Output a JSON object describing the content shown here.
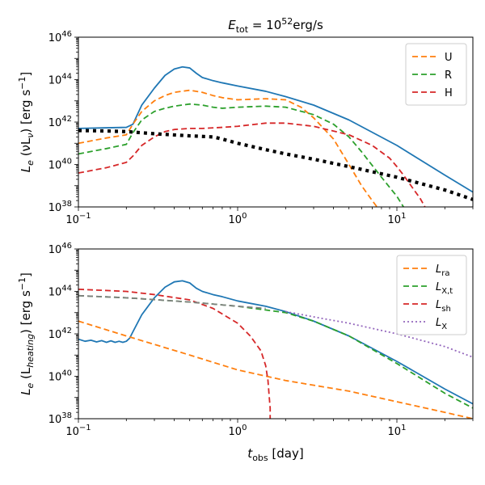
{
  "chart_data": [
    {
      "type": "line",
      "title": "E_tot = 10^52 erg/s",
      "title_parts": {
        "var": "E",
        "sub": "tot",
        "eq": " = 10",
        "exp": "52",
        "unit": "erg/s"
      },
      "xlabel": "",
      "ylabel": "L_e (νL_ν) [erg s^-1]",
      "ylabel_parts": {
        "a": "L",
        "a_sub": "e",
        "b": " (νL",
        "b_sub": "ν",
        "c": ") [erg s",
        "c_sup": "−1",
        "d": "]"
      },
      "xscale": "log",
      "yscale": "log",
      "xlim": [
        0.1,
        30
      ],
      "ylim": [
        1e+38,
        1e+46
      ],
      "xticks": [
        {
          "value": 0.1,
          "base": "10",
          "exp": "−1"
        },
        {
          "value": 1,
          "base": "10",
          "exp": "0"
        },
        {
          "value": 10,
          "base": "10",
          "exp": "1"
        }
      ],
      "yticks": [
        {
          "value": 1e+38,
          "base": "10",
          "exp": "38"
        },
        {
          "value": 1e+40,
          "base": "10",
          "exp": "40"
        },
        {
          "value": 1e+42,
          "base": "10",
          "exp": "42"
        },
        {
          "value": 1e+44,
          "base": "10",
          "exp": "44"
        },
        {
          "value": 1e+46,
          "base": "10",
          "exp": "46"
        }
      ],
      "legend": {
        "location": "upper-right",
        "entries": [
          {
            "label": "U",
            "sub": ""
          },
          {
            "label": "R",
            "sub": ""
          },
          {
            "label": "H",
            "sub": ""
          }
        ]
      },
      "series": [
        {
          "name": "total",
          "color": "#1f77b4",
          "style": "solid",
          "in_legend": false,
          "x": [
            0.1,
            0.2,
            0.22,
            0.25,
            0.3,
            0.35,
            0.4,
            0.45,
            0.5,
            0.55,
            0.6,
            0.7,
            0.8,
            1,
            1.5,
            2,
            3,
            5,
            10,
            20,
            30
          ],
          "logy": [
            41.7,
            41.75,
            41.9,
            42.8,
            43.6,
            44.2,
            44.5,
            44.6,
            44.55,
            44.3,
            44.1,
            43.95,
            43.85,
            43.7,
            43.45,
            43.2,
            42.8,
            42.1,
            40.9,
            39.5,
            38.7
          ]
        },
        {
          "name": "U",
          "color": "#ff7f0e",
          "style": "dashed",
          "in_legend": true,
          "x": [
            0.1,
            0.15,
            0.2,
            0.22,
            0.25,
            0.3,
            0.35,
            0.4,
            0.5,
            0.6,
            0.7,
            0.8,
            1,
            1.5,
            2,
            2.5,
            3,
            4,
            5,
            6,
            7,
            7.5
          ],
          "logy": [
            41.0,
            41.25,
            41.4,
            41.9,
            42.5,
            43.0,
            43.25,
            43.4,
            43.5,
            43.4,
            43.25,
            43.15,
            43.05,
            43.1,
            43.05,
            42.7,
            42.2,
            41.2,
            40.0,
            39.0,
            38.3,
            38.0
          ]
        },
        {
          "name": "R",
          "color": "#2ca02c",
          "style": "dashed",
          "in_legend": true,
          "x": [
            0.1,
            0.15,
            0.2,
            0.22,
            0.25,
            0.3,
            0.35,
            0.4,
            0.5,
            0.6,
            0.7,
            0.8,
            1,
            1.5,
            2,
            3,
            4,
            5,
            6,
            8,
            10,
            11
          ],
          "logy": [
            40.5,
            40.75,
            40.95,
            41.5,
            42.1,
            42.5,
            42.65,
            42.75,
            42.85,
            42.8,
            42.7,
            42.65,
            42.7,
            42.75,
            42.7,
            42.35,
            41.9,
            41.3,
            40.6,
            39.4,
            38.5,
            38.0
          ]
        },
        {
          "name": "H",
          "color": "#d62728",
          "style": "dashed",
          "in_legend": true,
          "x": [
            0.1,
            0.15,
            0.2,
            0.22,
            0.25,
            0.3,
            0.35,
            0.4,
            0.5,
            0.6,
            0.8,
            1,
            1.5,
            2,
            3,
            5,
            7,
            9,
            10,
            11,
            12,
            14,
            15
          ],
          "logy": [
            39.6,
            39.85,
            40.1,
            40.4,
            40.9,
            41.3,
            41.55,
            41.65,
            41.7,
            41.7,
            41.75,
            41.8,
            41.95,
            41.95,
            41.8,
            41.4,
            40.9,
            40.3,
            39.9,
            39.5,
            39.1,
            38.4,
            38.0
          ]
        },
        {
          "name": "black-dotted",
          "color": "#000000",
          "style": "bold-dotted",
          "in_legend": false,
          "x": [
            0.1,
            0.15,
            0.2,
            0.3,
            0.5,
            0.7,
            0.8,
            1,
            1.5,
            2,
            3,
            5,
            10,
            20,
            30
          ],
          "logy": [
            41.6,
            41.58,
            41.55,
            41.45,
            41.35,
            41.3,
            41.2,
            41.0,
            40.7,
            40.5,
            40.25,
            39.9,
            39.4,
            38.8,
            38.35
          ]
        }
      ]
    },
    {
      "type": "line",
      "title": "",
      "xlabel": "t_obs [day]",
      "xlabel_parts": {
        "var": "t",
        "sub": "obs",
        "rest": " [day]"
      },
      "ylabel": "L_e (L_heating) [erg s^-1]",
      "ylabel_parts": {
        "a": "L",
        "a_sub": "e",
        "b": " (L",
        "b_sub": "heating",
        "c": ") [erg s",
        "c_sup": "−1",
        "d": "]"
      },
      "xscale": "log",
      "yscale": "log",
      "xlim": [
        0.1,
        30
      ],
      "ylim": [
        1e+38,
        1e+46
      ],
      "xticks": [
        {
          "value": 0.1,
          "base": "10",
          "exp": "−1"
        },
        {
          "value": 1,
          "base": "10",
          "exp": "0"
        },
        {
          "value": 10,
          "base": "10",
          "exp": "1"
        }
      ],
      "yticks": [
        {
          "value": 1e+38,
          "base": "10",
          "exp": "38"
        },
        {
          "value": 1e+40,
          "base": "10",
          "exp": "40"
        },
        {
          "value": 1e+42,
          "base": "10",
          "exp": "42"
        },
        {
          "value": 1e+44,
          "base": "10",
          "exp": "44"
        },
        {
          "value": 1e+46,
          "base": "10",
          "exp": "46"
        }
      ],
      "legend": {
        "location": "upper-right",
        "entries": [
          {
            "label": "L",
            "sub": "ra"
          },
          {
            "label": "L",
            "sub": "X,t"
          },
          {
            "label": "L",
            "sub": "sh"
          },
          {
            "label": "L",
            "sub": "X"
          }
        ]
      },
      "series": [
        {
          "name": "total",
          "color": "#1f77b4",
          "style": "solid",
          "in_legend": false,
          "x": [
            0.1,
            0.11,
            0.12,
            0.13,
            0.14,
            0.15,
            0.16,
            0.17,
            0.18,
            0.19,
            0.2,
            0.21,
            0.22,
            0.25,
            0.3,
            0.35,
            0.4,
            0.45,
            0.5,
            0.55,
            0.6,
            0.7,
            0.8,
            1,
            1.5,
            2,
            3,
            5,
            10,
            20,
            30
          ],
          "logy": [
            41.75,
            41.65,
            41.7,
            41.62,
            41.68,
            41.6,
            41.67,
            41.6,
            41.65,
            41.6,
            41.65,
            41.8,
            42.1,
            42.9,
            43.7,
            44.2,
            44.45,
            44.5,
            44.4,
            44.15,
            44.0,
            43.85,
            43.75,
            43.55,
            43.3,
            43.05,
            42.6,
            41.9,
            40.7,
            39.4,
            38.7
          ]
        },
        {
          "name": "L_ra",
          "color": "#ff7f0e",
          "style": "dashed",
          "in_legend": true,
          "x": [
            0.1,
            0.2,
            0.5,
            1,
            2,
            5,
            10,
            20,
            30
          ],
          "logy": [
            42.6,
            41.9,
            41.0,
            40.3,
            39.8,
            39.3,
            38.8,
            38.3,
            38.0
          ]
        },
        {
          "name": "L_X,t",
          "color": "#2ca02c",
          "style": "dashed",
          "in_legend": true,
          "x": [
            0.1,
            0.2,
            0.5,
            1,
            2,
            3,
            5,
            10,
            20,
            30
          ],
          "logy": [
            43.8,
            43.7,
            43.5,
            43.3,
            43.0,
            42.6,
            41.9,
            40.6,
            39.2,
            38.5
          ]
        },
        {
          "name": "L_sh",
          "color": "#d62728",
          "style": "dashed",
          "in_legend": true,
          "x": [
            0.1,
            0.2,
            0.3,
            0.5,
            0.7,
            1,
            1.2,
            1.4,
            1.5,
            1.55,
            1.58,
            1.6,
            1.6
          ],
          "logy": [
            44.1,
            44.0,
            43.85,
            43.6,
            43.2,
            42.5,
            41.9,
            41.2,
            40.5,
            39.8,
            39.0,
            38.5,
            38.0
          ]
        },
        {
          "name": "L_X",
          "color": "#9467bd",
          "style": "dotted",
          "in_legend": true,
          "x": [
            2.0,
            3,
            5,
            10,
            20,
            30
          ],
          "logy": [
            43.05,
            42.8,
            42.5,
            42.0,
            41.4,
            40.9
          ]
        },
        {
          "name": "gray-dashed",
          "color": "#7f7f7f",
          "style": "dashed",
          "in_legend": false,
          "x": [
            0.1,
            0.2,
            0.5,
            1,
            1.5
          ],
          "logy": [
            43.8,
            43.7,
            43.5,
            43.3,
            43.2
          ]
        }
      ]
    }
  ]
}
